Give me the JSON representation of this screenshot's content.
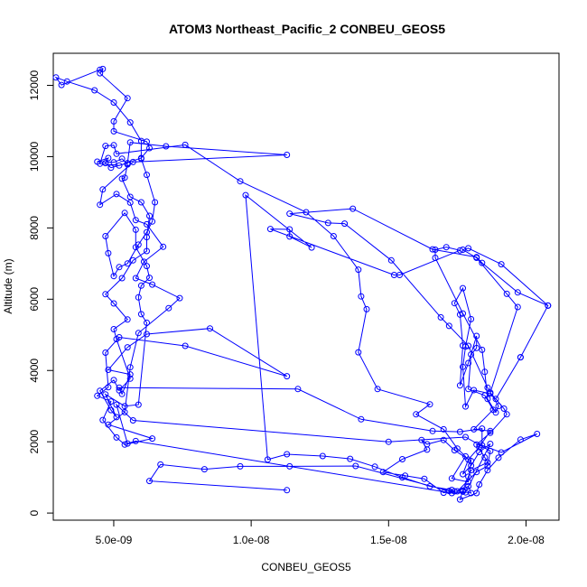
{
  "chart_data": {
    "type": "line",
    "title": "ATOM3 Northeast_Pacific_2 CONBEU_GEOS5",
    "xlabel": "CONBEU_GEOS5",
    "ylabel": "Altitude (m)",
    "xlim": [
      2.8e-09,
      2.12e-08
    ],
    "ylim": [
      -200,
      12900
    ],
    "x_ticks": [
      5e-09,
      1e-08,
      1.5e-08,
      2e-08
    ],
    "x_tick_labels": [
      "5.0e-09",
      "1.0e-08",
      "1.5e-08",
      "2.0e-08"
    ],
    "y_ticks": [
      0,
      2000,
      4000,
      6000,
      8000,
      10000,
      12000
    ],
    "y_tick_labels": [
      "0",
      "2000",
      "4000",
      "6000",
      "8000",
      "10000",
      "12000"
    ],
    "grid": false,
    "marker": "open-circle",
    "line_color": "#0000ff",
    "series": [
      {
        "points": [
          [
            1.13e-08,
            640
          ],
          [
            6.3e-09,
            900
          ],
          [
            6.7e-09,
            1360
          ],
          [
            8.3e-09,
            1230
          ],
          [
            9.6e-09,
            1310
          ],
          [
            1.14e-08,
            1310
          ],
          [
            1.38e-08,
            1320
          ],
          [
            1.72e-08,
            620
          ],
          [
            1.77e-08,
            600
          ],
          [
            1.8e-08,
            560
          ],
          [
            1.79e-08,
            750
          ],
          [
            1.75e-08,
            610
          ],
          [
            1.82e-08,
            1150
          ],
          [
            1.86e-08,
            1320
          ],
          [
            1.87e-08,
            1740
          ],
          [
            1.78e-08,
            2130
          ],
          [
            1.5e-08,
            2000
          ],
          [
            5.7e-09,
            2600
          ],
          [
            5.1e-09,
            3040
          ],
          [
            5.5e-09,
            1950
          ],
          [
            5.8e-09,
            2020
          ],
          [
            1.73e-08,
            560
          ],
          [
            1.78e-08,
            580
          ],
          [
            1.87e-08,
            1940
          ],
          [
            1.83e-08,
            1710
          ],
          [
            1.8e-08,
            1330
          ],
          [
            1.77e-08,
            1090
          ],
          [
            1.79e-08,
            1500
          ],
          [
            1.83e-08,
            1850
          ],
          [
            1.87e-08,
            2300
          ],
          [
            1.81e-08,
            2350
          ],
          [
            1.88e-08,
            2900
          ],
          [
            1.85e-08,
            3300
          ],
          [
            1.79e-08,
            3480
          ],
          [
            1.8e-08,
            4450
          ],
          [
            1.82e-08,
            4630
          ],
          [
            1.82e-08,
            4970
          ],
          [
            1.79e-08,
            4210
          ],
          [
            1.76e-08,
            3580
          ],
          [
            1.77e-08,
            4700
          ],
          [
            1.76e-08,
            5570
          ],
          [
            1.74e-08,
            5890
          ],
          [
            1.77e-08,
            6310
          ],
          [
            1.8e-08,
            5440
          ],
          [
            1.78e-08,
            4670
          ],
          [
            1.77e-08,
            4100
          ],
          [
            1.78e-08,
            2990
          ],
          [
            1.81e-08,
            3450
          ],
          [
            1.87e-08,
            3350
          ],
          [
            1.89e-08,
            3200
          ],
          [
            1.98e-08,
            4370
          ],
          [
            2.08e-08,
            5820
          ],
          [
            1.91e-08,
            6980
          ],
          [
            1.79e-08,
            7430
          ],
          [
            1.77e-08,
            7390
          ],
          [
            1.82e-08,
            7160
          ],
          [
            1.93e-08,
            6150
          ],
          [
            1.97e-08,
            5780
          ],
          [
            1.87e-08,
            3380
          ],
          [
            1.92e-08,
            2930
          ],
          [
            1.93e-08,
            2770
          ],
          [
            1.87e-08,
            2250
          ],
          [
            1.82e-08,
            1920
          ],
          [
            1.85e-08,
            1560
          ],
          [
            1.86e-08,
            1420
          ],
          [
            1.8e-08,
            1200
          ],
          [
            1.79e-08,
            1020
          ],
          [
            1.77e-08,
            630
          ],
          [
            1.76e-08,
            380
          ],
          [
            1.82e-08,
            560
          ],
          [
            1.83e-08,
            800
          ],
          [
            1.86e-08,
            1200
          ],
          [
            1.9e-08,
            1550
          ],
          [
            1.98e-08,
            2060
          ],
          [
            2.04e-08,
            2220
          ],
          [
            1.91e-08,
            1700
          ],
          [
            1.84e-08,
            1900
          ],
          [
            1.84e-08,
            2370
          ],
          [
            1.76e-08,
            2280
          ],
          [
            1.66e-08,
            2300
          ],
          [
            1.4e-08,
            2630
          ],
          [
            1.17e-08,
            3480
          ],
          [
            5.2e-09,
            3520
          ],
          [
            5.3e-09,
            3340
          ],
          [
            5.6e-09,
            3890
          ],
          [
            4.8e-09,
            4020
          ],
          [
            5.5e-09,
            4650
          ],
          [
            6.2e-09,
            5020
          ],
          [
            8.5e-09,
            5180
          ],
          [
            1.13e-08,
            3840
          ],
          [
            7.6e-09,
            4690
          ],
          [
            5.2e-09,
            4930
          ],
          [
            4.7e-09,
            4500
          ],
          [
            4.8e-09,
            3530
          ],
          [
            4.4e-09,
            3290
          ],
          [
            4.9e-09,
            3130
          ],
          [
            4.6e-09,
            2610
          ],
          [
            5.1e-09,
            2120
          ],
          [
            5.4e-09,
            1920
          ],
          [
            6.4e-09,
            2090
          ],
          [
            4.8e-09,
            2480
          ],
          [
            5.4e-09,
            2830
          ],
          [
            5.6e-09,
            4090
          ],
          [
            5.9e-09,
            5050
          ],
          [
            7e-09,
            5750
          ],
          [
            7.4e-09,
            6030
          ],
          [
            6.4e-09,
            6410
          ],
          [
            5.8e-09,
            6590
          ],
          [
            6.1e-09,
            7050
          ],
          [
            6.8e-09,
            7470
          ],
          [
            6.2e-09,
            8100
          ],
          [
            5.8e-09,
            8220
          ],
          [
            5.6e-09,
            8710
          ],
          [
            5.1e-09,
            8950
          ],
          [
            4.5e-09,
            8650
          ],
          [
            4.6e-09,
            9080
          ],
          [
            5.7e-09,
            9850
          ],
          [
            1.13e-08,
            10050
          ],
          [
            6.9e-09,
            10290
          ],
          [
            5.6e-09,
            10400
          ],
          [
            5.5e-09,
            9820
          ],
          [
            4.9e-09,
            9690
          ],
          [
            4.7e-09,
            9820
          ],
          [
            4.8e-09,
            9960
          ],
          [
            4.4e-09,
            9860
          ],
          [
            5e-09,
            9840
          ],
          [
            5.3e-09,
            9940
          ],
          [
            5.5e-09,
            9780
          ],
          [
            5.4e-09,
            9410
          ],
          [
            5.3e-09,
            9380
          ],
          [
            5.6e-09,
            8870
          ],
          [
            6e-09,
            8720
          ],
          [
            6.3e-09,
            8340
          ],
          [
            6.2e-09,
            7740
          ],
          [
            6.2e-09,
            7350
          ],
          [
            5.7e-09,
            7090
          ],
          [
            5.3e-09,
            6590
          ],
          [
            4.7e-09,
            6140
          ],
          [
            5e-09,
            5880
          ],
          [
            5.5e-09,
            5430
          ],
          [
            5e-09,
            5160
          ],
          [
            5.1e-09,
            4880
          ],
          [
            5.6e-09,
            3770
          ],
          [
            5.2e-09,
            3440
          ],
          [
            5e-09,
            3730
          ],
          [
            4.5e-09,
            3430
          ],
          [
            4.9e-09,
            2890
          ],
          [
            5.1e-09,
            2690
          ],
          [
            4.7e-09,
            3330
          ],
          [
            5.4e-09,
            3000
          ],
          [
            5.9e-09,
            3040
          ],
          [
            6.2e-09,
            5340
          ],
          [
            6e-09,
            5580
          ],
          [
            5.9e-09,
            6050
          ],
          [
            6e-09,
            6380
          ],
          [
            6.3e-09,
            6600
          ],
          [
            6.2e-09,
            6930
          ],
          [
            5.8e-09,
            7460
          ],
          [
            5.8e-09,
            7950
          ],
          [
            5.4e-09,
            8420
          ],
          [
            4.7e-09,
            7770
          ],
          [
            4.8e-09,
            7290
          ],
          [
            5e-09,
            6650
          ],
          [
            5.2e-09,
            6900
          ],
          [
            5.5e-09,
            7000
          ],
          [
            5.9e-09,
            7530
          ],
          [
            6.2e-09,
            7880
          ],
          [
            6.4e-09,
            8180
          ],
          [
            6.5e-09,
            8720
          ],
          [
            6.2e-09,
            9490
          ],
          [
            6e-09,
            9940
          ],
          [
            6e-09,
            10440
          ],
          [
            5.6e-09,
            10960
          ],
          [
            5e-09,
            11520
          ],
          [
            4.3e-09,
            11860
          ],
          [
            3.3e-09,
            12110
          ],
          [
            2.9e-09,
            12220
          ],
          [
            3.1e-09,
            12010
          ],
          [
            4.5e-09,
            12440
          ],
          [
            4.6e-09,
            12460
          ],
          [
            4.5e-09,
            12340
          ],
          [
            5.5e-09,
            11640
          ],
          [
            5e-09,
            10990
          ],
          [
            5e-09,
            10710
          ],
          [
            6.2e-09,
            10420
          ],
          [
            6.3e-09,
            10240
          ],
          [
            6e-09,
            9960
          ],
          [
            5.2e-09,
            9750
          ],
          [
            4.5e-09,
            9800
          ],
          [
            4.7e-09,
            10300
          ],
          [
            5e-09,
            10320
          ],
          [
            5.1e-09,
            10080
          ],
          [
            7.6e-09,
            10330
          ],
          [
            9.6e-09,
            9310
          ],
          [
            1.2e-08,
            8440
          ],
          [
            1.3e-08,
            7770
          ],
          [
            1.39e-08,
            6830
          ],
          [
            1.4e-08,
            6080
          ],
          [
            1.42e-08,
            5720
          ],
          [
            1.39e-08,
            4510
          ],
          [
            1.46e-08,
            3480
          ],
          [
            1.65e-08,
            3050
          ],
          [
            1.6e-08,
            2770
          ],
          [
            1.7e-08,
            2350
          ],
          [
            1.75e-08,
            1810
          ],
          [
            1.78e-08,
            1590
          ],
          [
            1.73e-08,
            970
          ],
          [
            1.79e-08,
            870
          ],
          [
            1.8e-08,
            1460
          ],
          [
            1.74e-08,
            1760
          ],
          [
            1.7e-08,
            2050
          ],
          [
            1.64e-08,
            1930
          ],
          [
            1.62e-08,
            2050
          ],
          [
            1.64e-08,
            1780
          ],
          [
            1.55e-08,
            1510
          ],
          [
            1.48e-08,
            1150
          ],
          [
            1.56e-08,
            1050
          ],
          [
            1.63e-08,
            960
          ],
          [
            1.7e-08,
            570
          ],
          [
            1.74e-08,
            610
          ],
          [
            1.73e-08,
            650
          ],
          [
            1.65e-08,
            750
          ],
          [
            1.55e-08,
            1000
          ],
          [
            1.45e-08,
            1300
          ],
          [
            1.36e-08,
            1520
          ],
          [
            1.26e-08,
            1600
          ],
          [
            1.13e-08,
            1650
          ],
          [
            1.06e-08,
            1500
          ],
          [
            9.8e-09,
            8920
          ],
          [
            1.22e-08,
            7450
          ],
          [
            1.14e-08,
            7760
          ],
          [
            1.14e-08,
            7960
          ],
          [
            1.07e-08,
            7970
          ],
          [
            1.52e-08,
            6680
          ],
          [
            1.54e-08,
            6680
          ],
          [
            1.76e-08,
            7370
          ],
          [
            1.71e-08,
            7460
          ],
          [
            1.67e-08,
            7390
          ],
          [
            1.67e-08,
            7160
          ],
          [
            1.77e-08,
            5600
          ],
          [
            1.84e-08,
            4580
          ],
          [
            1.85e-08,
            3960
          ],
          [
            1.86e-08,
            3200
          ],
          [
            1.89e-08,
            2820
          ],
          [
            1.9e-08,
            3000
          ],
          [
            1.86e-08,
            3520
          ],
          [
            1.79e-08,
            4690
          ],
          [
            1.72e-08,
            5250
          ],
          [
            1.69e-08,
            5490
          ],
          [
            1.51e-08,
            7090
          ],
          [
            1.34e-08,
            8120
          ],
          [
            1.28e-08,
            8140
          ],
          [
            1.14e-08,
            8400
          ],
          [
            1.37e-08,
            8540
          ],
          [
            1.66e-08,
            7400
          ],
          [
            1.82e-08,
            7180
          ],
          [
            1.84e-08,
            7020
          ],
          [
            1.97e-08,
            6190
          ],
          [
            2.08e-08,
            5820
          ],
          [
            1.98e-08,
            4370
          ]
        ]
      }
    ]
  }
}
